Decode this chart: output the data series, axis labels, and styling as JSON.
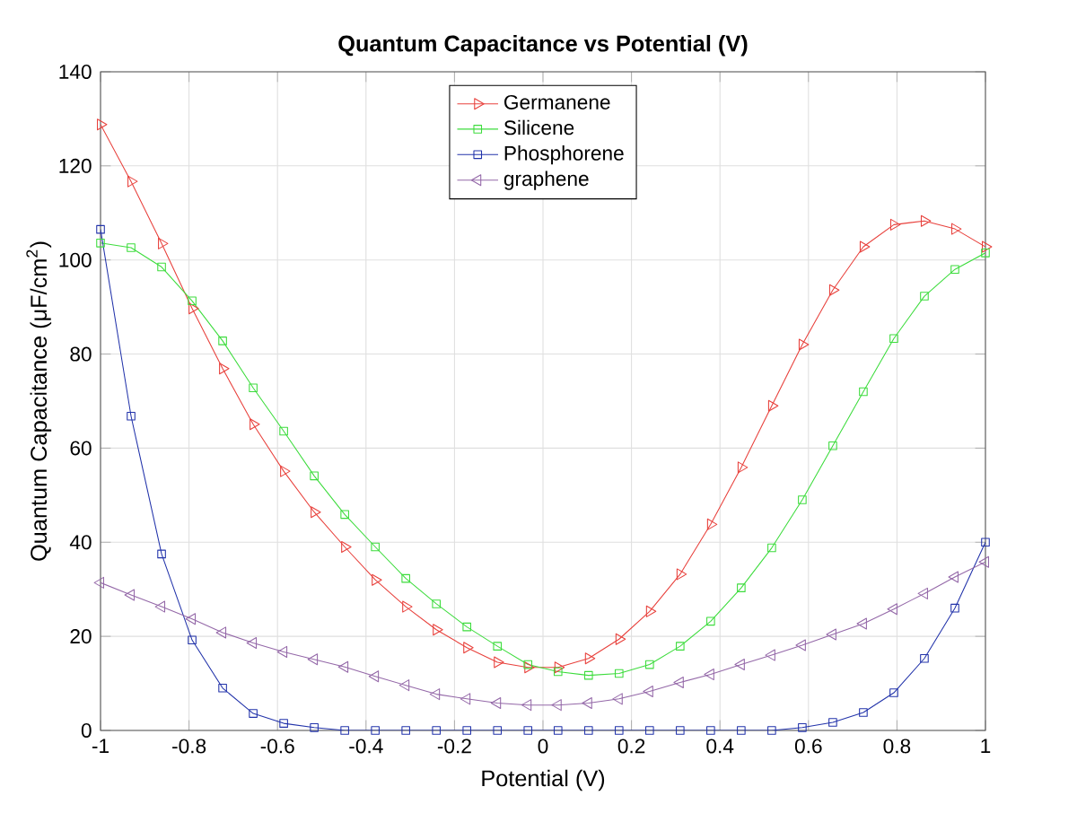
{
  "chart_data": {
    "type": "line",
    "title": "Quantum Capacitance vs Potential (V)",
    "xlabel": "Potential (V)",
    "ylabel": "Quantum Capacitance (μF/cm$^{2}$)",
    "x": [
      -1,
      -0.931,
      -0.862,
      -0.793,
      -0.724,
      -0.655,
      -0.586,
      -0.517,
      -0.448,
      -0.379,
      -0.31,
      -0.241,
      -0.172,
      -0.103,
      -0.034,
      0.034,
      0.103,
      0.172,
      0.241,
      0.31,
      0.379,
      0.448,
      0.517,
      0.586,
      0.655,
      0.724,
      0.793,
      0.862,
      0.931,
      1
    ],
    "series": [
      {
        "name": "Germanene",
        "color": "#e8413c",
        "marker": "triangle-right",
        "values": [
          128.8,
          116.7,
          103.5,
          89.7,
          76.9,
          65.1,
          55.1,
          46.4,
          39,
          32,
          26.3,
          21.4,
          17.6,
          14.5,
          13.4,
          13.4,
          15.3,
          19.4,
          25.3,
          33.2,
          43.8,
          55.9,
          69,
          82,
          93.6,
          102.8,
          107.5,
          108.3,
          106.6,
          102.8
        ]
      },
      {
        "name": "Silicene",
        "color": "#3ddc3d",
        "marker": "square",
        "values": [
          103.6,
          102.6,
          98.5,
          91.3,
          82.8,
          72.8,
          63.6,
          54.1,
          45.9,
          39,
          32.3,
          26.9,
          22,
          17.9,
          14,
          12.5,
          11.7,
          12.1,
          14,
          17.9,
          23.2,
          30.3,
          38.8,
          49,
          60.5,
          72,
          83.3,
          92.3,
          98,
          101.5
        ]
      },
      {
        "name": "Phosphorene",
        "color": "#2233aa",
        "marker": "square",
        "values": [
          106.5,
          66.8,
          37.5,
          19.2,
          9,
          3.6,
          1.5,
          0.6,
          0,
          0,
          0,
          0,
          0,
          0,
          0,
          0,
          0,
          0,
          0,
          0,
          0,
          0,
          0,
          0.6,
          1.7,
          3.8,
          8,
          15.3,
          26,
          40
        ]
      },
      {
        "name": "graphene",
        "color": "#9468a8",
        "marker": "triangle-left",
        "values": [
          31.4,
          28.8,
          26.3,
          23.7,
          20.8,
          18.6,
          16.7,
          15.1,
          13.5,
          11.5,
          9.6,
          7.7,
          6.7,
          5.8,
          5.4,
          5.4,
          5.8,
          6.7,
          8.3,
          10.2,
          11.9,
          14,
          16,
          18.1,
          20.4,
          22.7,
          25.8,
          29.1,
          32.6,
          35.8
        ]
      }
    ],
    "xlim": [
      -1,
      1
    ],
    "ylim": [
      0,
      140
    ],
    "xticks": [
      -1,
      -0.8,
      -0.6,
      -0.4,
      -0.2,
      0,
      0.2,
      0.4,
      0.6,
      0.8,
      1
    ],
    "yticks": [
      0,
      20,
      40,
      60,
      80,
      100,
      120,
      140
    ],
    "grid": true,
    "legend": "top",
    "line_style": "solid"
  }
}
